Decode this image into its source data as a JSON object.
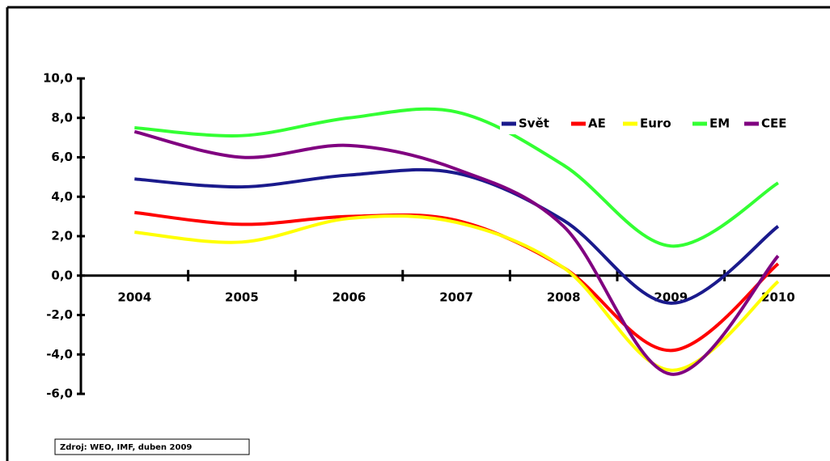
{
  "chart_data": {
    "type": "line",
    "categories": [
      "2004",
      "2005",
      "2006",
      "2007",
      "2008",
      "2009",
      "2010"
    ],
    "series": [
      {
        "name": "Svět",
        "color": "#1a1a8c",
        "values": [
          4.9,
          4.5,
          5.1,
          5.2,
          2.8,
          -1.4,
          2.5
        ]
      },
      {
        "name": "AE",
        "color": "#ff0000",
        "values": [
          3.2,
          2.6,
          3.0,
          2.8,
          0.4,
          -3.8,
          0.6
        ]
      },
      {
        "name": "Euro",
        "color": "#ffff00",
        "values": [
          2.2,
          1.7,
          2.9,
          2.7,
          0.4,
          -4.8,
          -0.3
        ]
      },
      {
        "name": "EM",
        "color": "#33ff33",
        "values": [
          7.5,
          7.1,
          8.0,
          8.3,
          5.6,
          1.5,
          4.7
        ]
      },
      {
        "name": "CEE",
        "color": "#800080",
        "values": [
          7.3,
          6.0,
          6.6,
          5.4,
          2.5,
          -5.0,
          1.0
        ]
      }
    ],
    "ylim": [
      -6,
      10
    ],
    "yticks": [
      {
        "value": -6,
        "label": "-6,0"
      },
      {
        "value": -4,
        "label": "-4,0"
      },
      {
        "value": -2,
        "label": "-2,0"
      },
      {
        "value": 0,
        "label": "0,0"
      },
      {
        "value": 2,
        "label": "2,0"
      },
      {
        "value": 4,
        "label": "4,0"
      },
      {
        "value": 6,
        "label": "6,0"
      },
      {
        "value": 8,
        "label": "8,0"
      },
      {
        "value": 10,
        "label": "10,0"
      }
    ],
    "legend": "top-right",
    "smooth": true,
    "source": "Zdroj: WEO, IMF, duben 2009"
  }
}
